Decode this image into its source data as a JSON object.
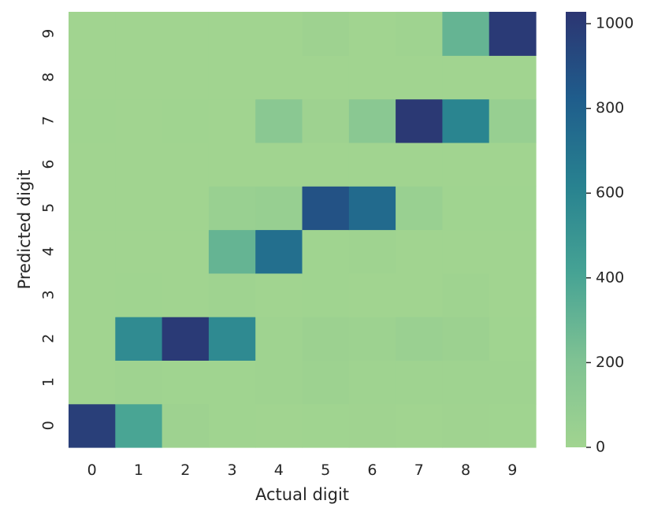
{
  "chart_data": {
    "type": "heatmap",
    "title": "",
    "xlabel": "Actual digit",
    "ylabel": "Predicted digit",
    "x_categories": [
      "0",
      "1",
      "2",
      "3",
      "4",
      "5",
      "6",
      "7",
      "8",
      "9"
    ],
    "y_categories": [
      "0",
      "1",
      "2",
      "3",
      "4",
      "5",
      "6",
      "7",
      "8",
      "9"
    ],
    "y_order": "bottom-to-top",
    "colormap": "crest (light green to dark navy)",
    "color_stops": [
      "#a1d490",
      "#7fc293",
      "#46a394",
      "#288290",
      "#1f5d8c",
      "#2c3572"
    ],
    "vmin": 0,
    "vmax": 1028,
    "colorbar_ticks": [
      "0",
      "200",
      "400",
      "600",
      "800",
      "1000"
    ],
    "colorbar_values": [
      0,
      200,
      400,
      600,
      800,
      1000
    ],
    "grid": false,
    "matrix": [
      [
        975,
        400,
        20,
        5,
        2,
        5,
        8,
        2,
        6,
        5
      ],
      [
        0,
        10,
        5,
        5,
        15,
        25,
        15,
        10,
        10,
        10
      ],
      [
        0,
        560,
        1000,
        570,
        10,
        30,
        25,
        40,
        30,
        5
      ],
      [
        0,
        5,
        0,
        10,
        0,
        5,
        0,
        0,
        10,
        0
      ],
      [
        0,
        0,
        0,
        300,
        720,
        5,
        15,
        0,
        0,
        0
      ],
      [
        0,
        0,
        0,
        50,
        60,
        880,
        750,
        50,
        5,
        5
      ],
      [
        0,
        0,
        0,
        0,
        0,
        0,
        0,
        0,
        0,
        0
      ],
      [
        5,
        0,
        5,
        0,
        140,
        20,
        140,
        1010,
        600,
        60
      ],
      [
        0,
        0,
        0,
        0,
        0,
        0,
        0,
        0,
        0,
        0
      ],
      [
        0,
        0,
        0,
        0,
        0,
        20,
        0,
        15,
        300,
        1000
      ]
    ]
  }
}
